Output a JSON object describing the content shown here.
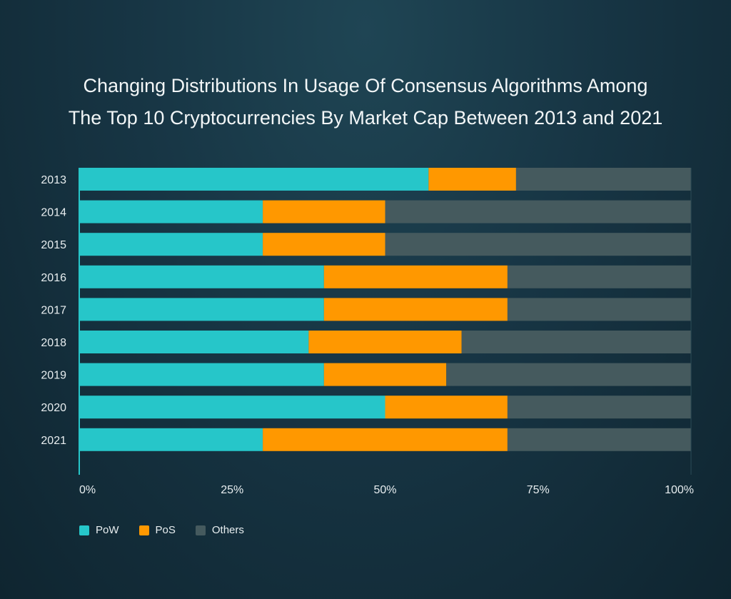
{
  "chart_data": {
    "type": "bar",
    "orientation": "horizontal",
    "stacked": true,
    "title": "Changing Distributions In Usage Of Consensus Algorithms Among The Top 10 Cryptocurrencies By Market Cap Between 2013 and 2021",
    "title_lines": [
      "Changing Distributions In Usage Of Consensus Algorithms Among",
      "The Top 10 Cryptocurrencies By Market Cap Between 2013 and 2021"
    ],
    "categories": [
      "2013",
      "2014",
      "2015",
      "2016",
      "2017",
      "2018",
      "2019",
      "2020",
      "2021"
    ],
    "series": [
      {
        "name": "PoW",
        "color": "#26c6c9",
        "values": [
          57.1,
          30,
          30,
          40,
          40,
          37.5,
          40,
          50,
          30
        ]
      },
      {
        "name": "PoS",
        "color": "#ff9800",
        "values": [
          14.3,
          20,
          20,
          30,
          30,
          25,
          20,
          20,
          40
        ]
      },
      {
        "name": "Others",
        "color": "#455a5e",
        "values": [
          28.6,
          50,
          50,
          30,
          30,
          37.5,
          40,
          30,
          30
        ]
      }
    ],
    "xlim": [
      0,
      100
    ],
    "xticks": [
      "0%",
      "25%",
      "50%",
      "75%",
      "100%"
    ],
    "xtick_values": [
      0,
      25,
      50,
      75,
      100
    ],
    "grid": false,
    "legend_placement": "bottom-left"
  }
}
